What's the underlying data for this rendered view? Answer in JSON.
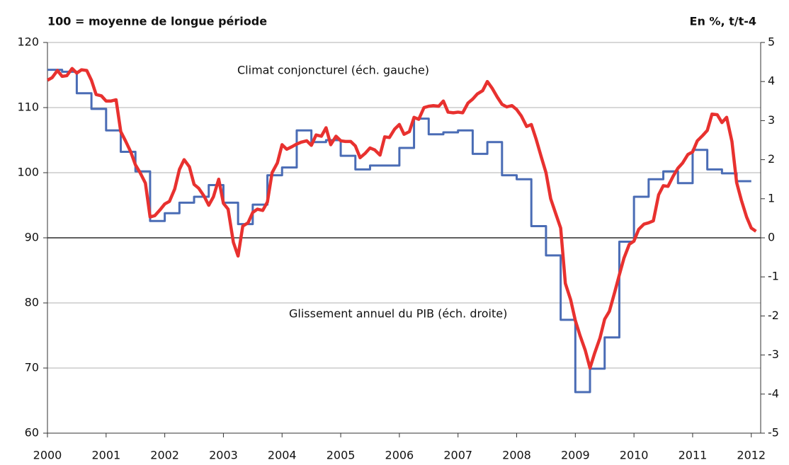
{
  "chart_data": {
    "type": "line",
    "title_left": "100 = moyenne de longue période",
    "title_right": "En %, t/t-4",
    "annotations": [
      "Climat conjoncturel (éch. gauche)",
      "Glissement annuel du PIB (éch. droite)"
    ],
    "xlim": [
      2000,
      2012.16
    ],
    "xticks": [
      2000,
      2001,
      2002,
      2003,
      2004,
      2005,
      2006,
      2007,
      2008,
      2009,
      2010,
      2011,
      2012
    ],
    "ylim": [
      60,
      120
    ],
    "yticks": [
      60,
      70,
      80,
      90,
      100,
      110,
      120
    ],
    "y2lim": [
      -5,
      5
    ],
    "y2ticks": [
      -5,
      -4,
      -3,
      -2,
      -1,
      0,
      1,
      2,
      3,
      4,
      5
    ],
    "reference_line": 90,
    "grid": true,
    "series": [
      {
        "name": "Climat conjoncturel",
        "color": "#e8312f",
        "step": false,
        "x": [
          2000,
          2000.08,
          2000.17,
          2000.25,
          2000.33,
          2000.42,
          2000.5,
          2000.58,
          2000.67,
          2000.75,
          2000.83,
          2000.92,
          2001,
          2001.08,
          2001.17,
          2001.25,
          2001.33,
          2001.42,
          2001.5,
          2001.58,
          2001.67,
          2001.75,
          2001.83,
          2001.92,
          2002,
          2002.08,
          2002.17,
          2002.25,
          2002.33,
          2002.42,
          2002.5,
          2002.58,
          2002.67,
          2002.75,
          2002.83,
          2002.92,
          2003,
          2003.08,
          2003.17,
          2003.25,
          2003.33,
          2003.42,
          2003.5,
          2003.58,
          2003.67,
          2003.75,
          2003.83,
          2003.92,
          2004,
          2004.08,
          2004.17,
          2004.25,
          2004.33,
          2004.42,
          2004.5,
          2004.58,
          2004.67,
          2004.75,
          2004.83,
          2004.92,
          2005,
          2005.08,
          2005.17,
          2005.25,
          2005.33,
          2005.42,
          2005.5,
          2005.58,
          2005.67,
          2005.75,
          2005.83,
          2005.92,
          2006,
          2006.08,
          2006.17,
          2006.25,
          2006.33,
          2006.42,
          2006.5,
          2006.58,
          2006.67,
          2006.75,
          2006.83,
          2006.92,
          2007,
          2007.08,
          2007.17,
          2007.25,
          2007.33,
          2007.42,
          2007.5,
          2007.58,
          2007.67,
          2007.75,
          2007.83,
          2007.92,
          2008,
          2008.08,
          2008.17,
          2008.25,
          2008.33,
          2008.42,
          2008.5,
          2008.58,
          2008.67,
          2008.75,
          2008.83,
          2008.92,
          2009,
          2009.08,
          2009.17,
          2009.25,
          2009.33,
          2009.42,
          2009.5,
          2009.58,
          2009.67,
          2009.75,
          2009.83,
          2009.92,
          2010,
          2010.08,
          2010.17,
          2010.25,
          2010.33,
          2010.42,
          2010.5,
          2010.58,
          2010.67,
          2010.75,
          2010.83,
          2010.92,
          2011,
          2011.08,
          2011.17,
          2011.25,
          2011.33,
          2011.42,
          2011.5,
          2011.58,
          2011.67,
          2011.75,
          2011.83,
          2011.92,
          2012,
          2012.08
        ],
        "values": [
          114.2,
          114.6,
          115.7,
          114.8,
          114.9,
          116,
          115.3,
          115.8,
          115.7,
          114.2,
          112,
          111.8,
          111,
          111,
          111.2,
          106.3,
          104.9,
          103.2,
          101.2,
          100,
          98.4,
          93.2,
          93.4,
          94.3,
          95.2,
          95.6,
          97.5,
          100.5,
          102,
          100.9,
          98.2,
          97.6,
          96.4,
          95,
          96.3,
          99,
          95.3,
          94.4,
          89.3,
          87.2,
          91.8,
          92.3,
          93.9,
          94.4,
          94.2,
          95.5,
          100,
          101.5,
          104.3,
          103.6,
          104,
          104.4,
          104.7,
          104.9,
          104.2,
          105.8,
          105.6,
          106.9,
          104.3,
          105.6,
          104.9,
          104.8,
          104.8,
          104.1,
          102.3,
          103,
          103.8,
          103.5,
          102.7,
          105.5,
          105.4,
          106.7,
          107.4,
          105.9,
          106.3,
          108.5,
          108.2,
          110,
          110.2,
          110.3,
          110.2,
          111,
          109.3,
          109.2,
          109.3,
          109.2,
          110.7,
          111.3,
          112.1,
          112.6,
          114,
          113,
          111.6,
          110.5,
          110.1,
          110.3,
          109.7,
          108.7,
          107.1,
          107.4,
          105.2,
          102.4,
          100,
          96,
          93.6,
          91.5,
          83,
          80.5,
          77.3,
          75,
          72.7,
          70,
          72.3,
          74.6,
          77.5,
          78.7,
          81.6,
          84.3,
          86.9,
          89,
          89.5,
          91.3,
          92.1,
          92.3,
          92.6,
          96.6,
          98,
          97.9,
          99.5,
          100.7,
          101.5,
          102.8,
          103.2,
          104.9,
          105.7,
          106.5,
          109,
          108.9,
          107.7,
          108.5,
          104.8,
          98.5,
          95.8,
          93.2,
          91.5,
          91
        ]
      },
      {
        "name": "Glissement annuel du PIB",
        "color": "#4a6cb5",
        "step": true,
        "axis": "y2",
        "x": [
          2000,
          2000.25,
          2000.5,
          2000.75,
          2001,
          2001.25,
          2001.5,
          2001.75,
          2002,
          2002.25,
          2002.5,
          2002.75,
          2003,
          2003.25,
          2003.5,
          2003.75,
          2004,
          2004.25,
          2004.5,
          2004.75,
          2005,
          2005.25,
          2005.5,
          2005.75,
          2006,
          2006.25,
          2006.5,
          2006.75,
          2007,
          2007.25,
          2007.5,
          2007.75,
          2008,
          2008.25,
          2008.5,
          2008.75,
          2009,
          2009.25,
          2009.5,
          2009.75,
          2010,
          2010.25,
          2010.5,
          2010.75,
          2011,
          2011.25,
          2011.5,
          2011.75
        ],
        "values": [
          4.3,
          4.25,
          3.7,
          3.3,
          2.75,
          2.2,
          1.7,
          0.43,
          0.63,
          0.9,
          1.05,
          1.35,
          0.9,
          0.35,
          0.85,
          1.6,
          1.8,
          2.75,
          2.45,
          2.5,
          2.1,
          1.75,
          1.85,
          1.85,
          2.3,
          3.05,
          2.65,
          2.7,
          2.75,
          2.15,
          2.45,
          1.6,
          1.5,
          0.3,
          -0.45,
          -2.1,
          -3.95,
          -3.35,
          -2.55,
          -0.1,
          1.05,
          1.5,
          1.7,
          1.4,
          2.25,
          1.75,
          1.65,
          1.45
        ]
      }
    ]
  }
}
